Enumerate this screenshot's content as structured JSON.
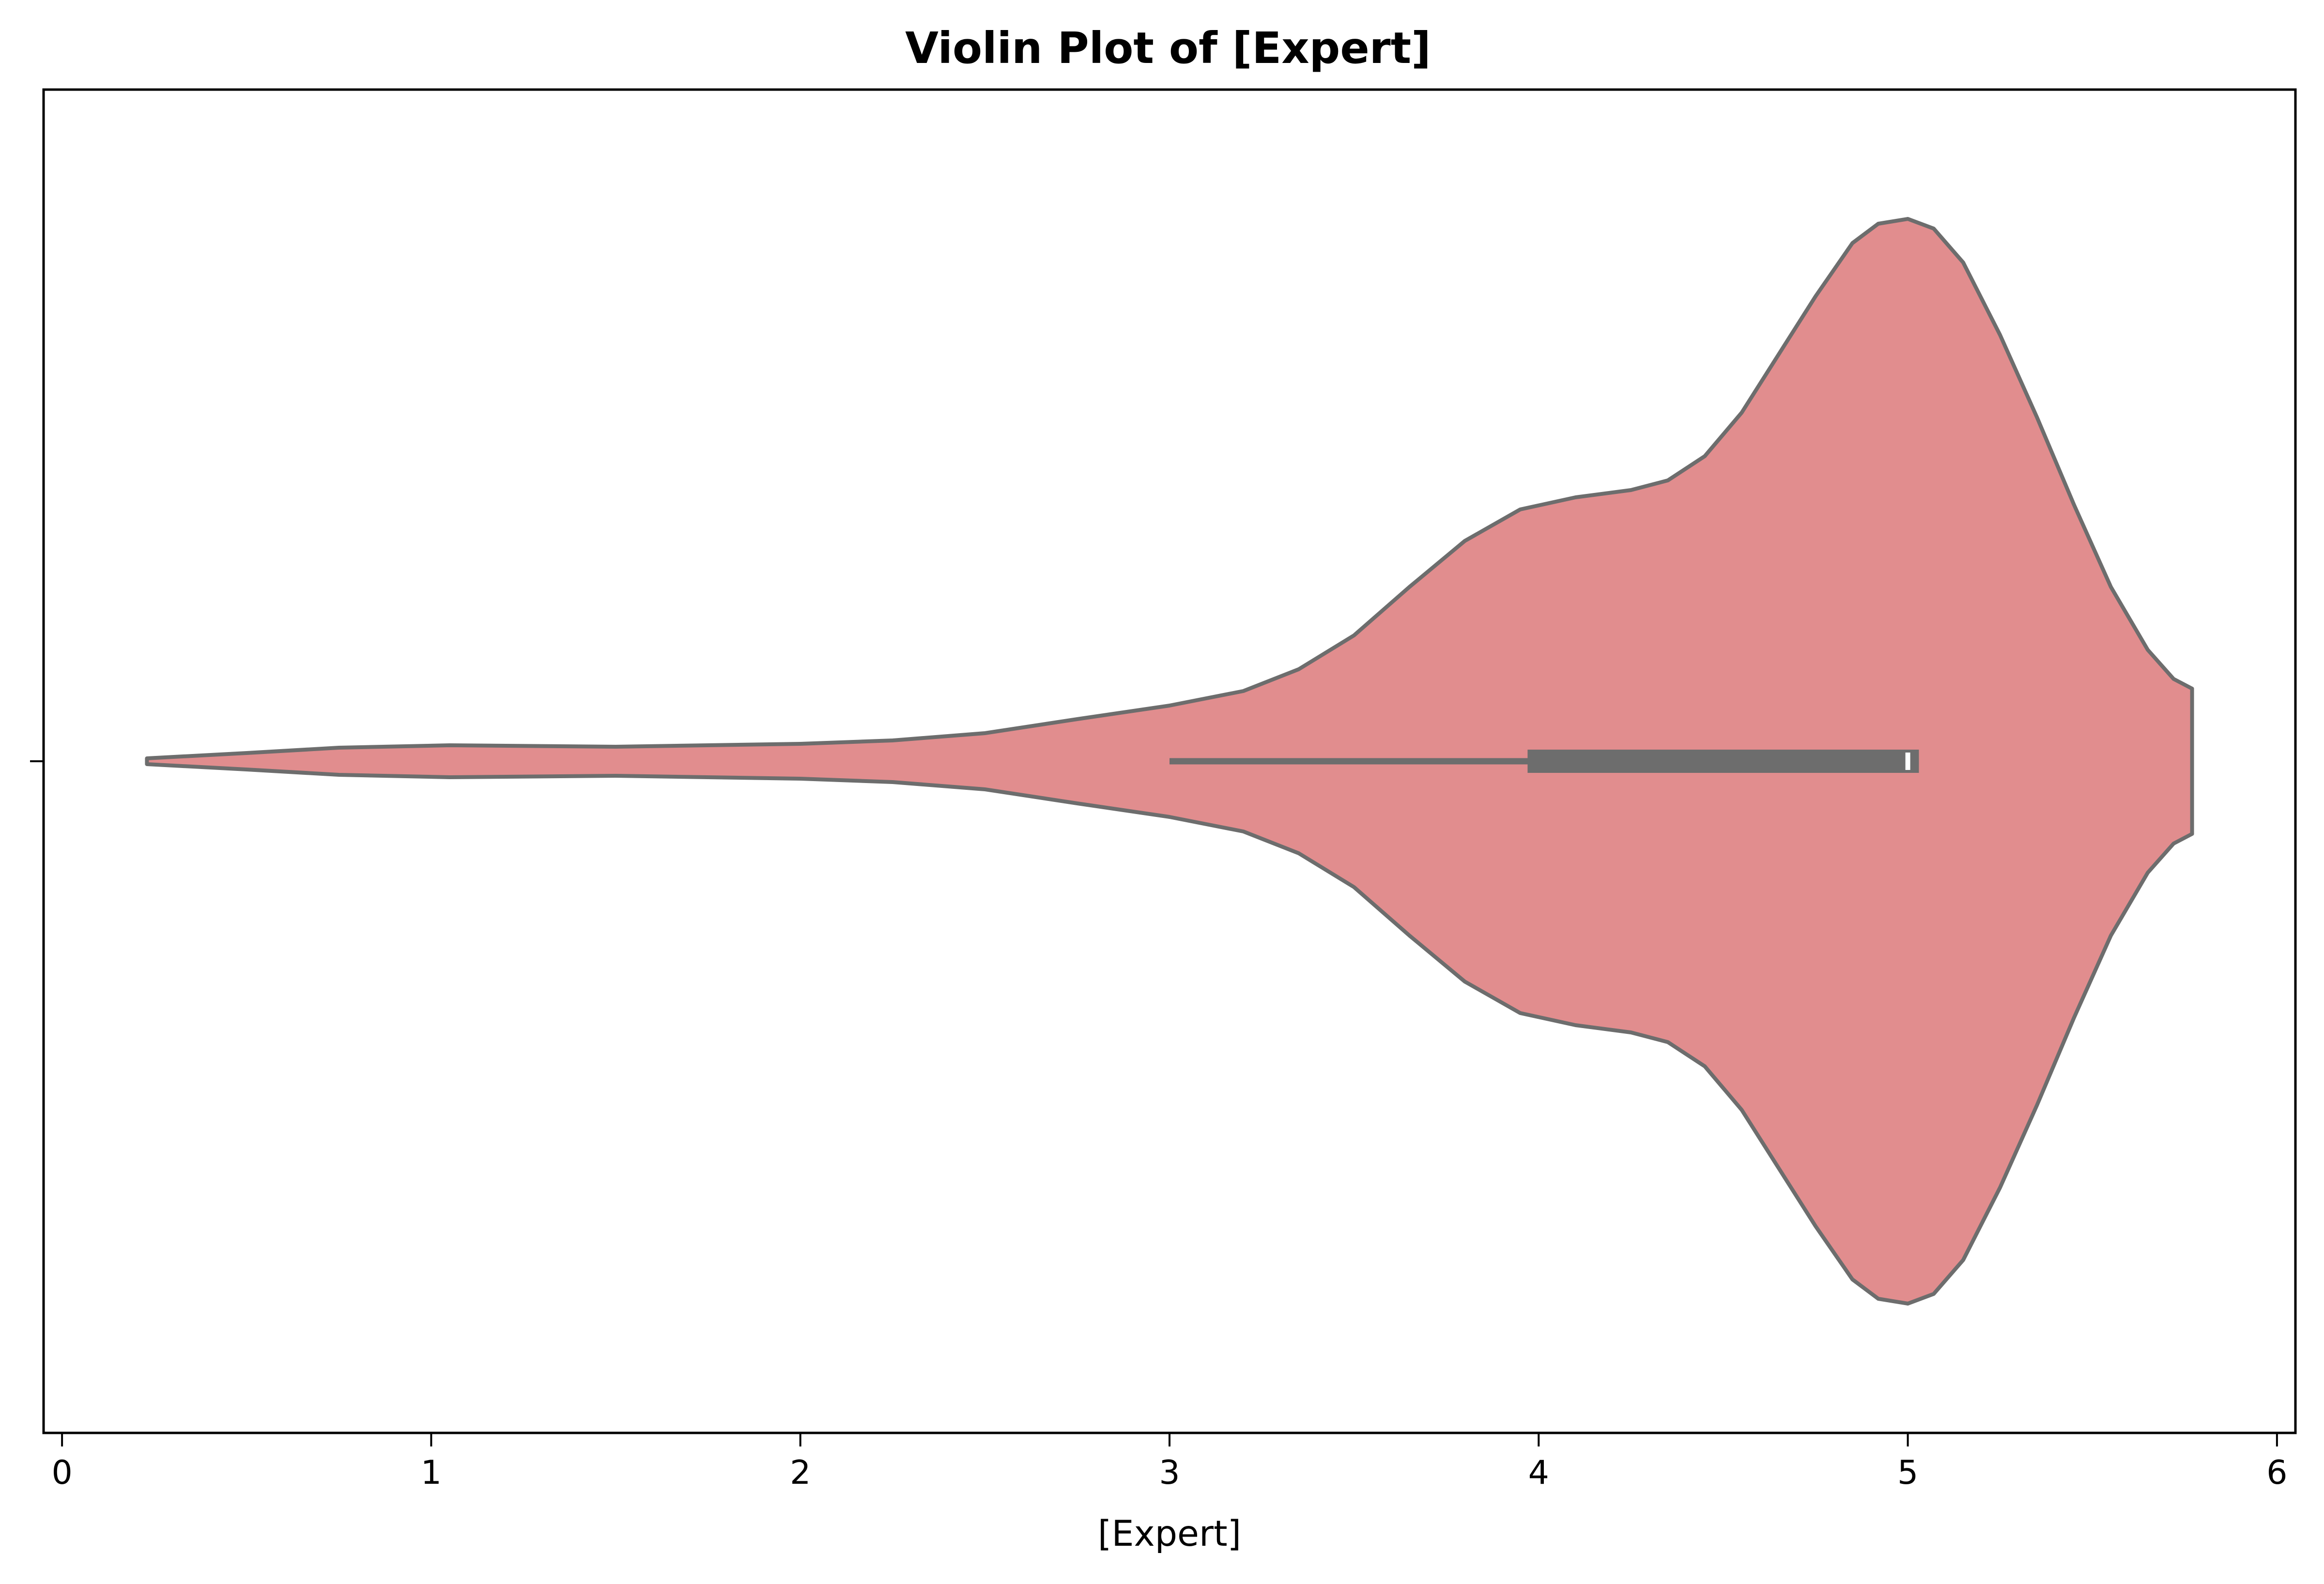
{
  "chart_data": {
    "type": "violin",
    "title": "Violin Plot of [Expert]",
    "xlabel": "[Expert]",
    "ylabel": "",
    "xlim": [
      -0.05,
      6.05
    ],
    "x_ticks": [
      0,
      1,
      2,
      3,
      4,
      5,
      6
    ],
    "x_tick_labels": [
      "0",
      "1",
      "2",
      "3",
      "4",
      "5",
      "6"
    ],
    "grid": false,
    "legend": false,
    "orientation": "horizontal",
    "series": [
      {
        "fill_color": "#e18d8e",
        "edge_color": "#6d6d6d",
        "density": {
          "x": [
            0.23,
            0.5,
            0.75,
            1.05,
            1.5,
            2.0,
            2.25,
            2.5,
            2.75,
            3.0,
            3.2,
            3.35,
            3.5,
            3.65,
            3.8,
            3.95,
            4.1,
            4.25,
            4.35,
            4.45,
            4.55,
            4.65,
            4.75,
            4.85,
            4.92,
            5.0,
            5.07,
            5.15,
            5.25,
            5.35,
            5.45,
            5.55,
            5.65,
            5.72,
            5.77
          ],
          "half_width": [
            0.006,
            0.017,
            0.028,
            0.033,
            0.03,
            0.036,
            0.043,
            0.058,
            0.087,
            0.115,
            0.145,
            0.19,
            0.26,
            0.36,
            0.455,
            0.52,
            0.545,
            0.56,
            0.58,
            0.63,
            0.72,
            0.84,
            0.96,
            1.07,
            1.11,
            1.12,
            1.1,
            1.03,
            0.88,
            0.71,
            0.53,
            0.36,
            0.23,
            0.17,
            0.15
          ]
        },
        "box": {
          "whisker_low": 3.0,
          "q1": 3.97,
          "median": 5.0,
          "q3": 5.03,
          "whisker_high": 5.03
        }
      }
    ]
  }
}
